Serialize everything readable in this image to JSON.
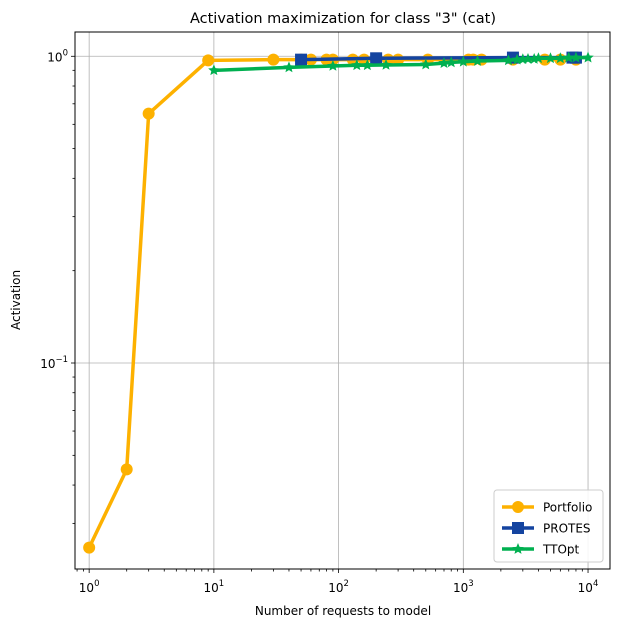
{
  "chart_data": {
    "type": "line",
    "title": "Activation maximization for class \"3\" (cat)",
    "xlabel": "Number of requests to model",
    "ylabel": "Activation",
    "xscale": "log",
    "yscale": "log",
    "xlim": [
      0.77,
      15000
    ],
    "ylim": [
      0.0213,
      1.2
    ],
    "x_ticks": [
      {
        "value": 1,
        "base": "10",
        "exp": "0"
      },
      {
        "value": 10,
        "base": "10",
        "exp": "1"
      },
      {
        "value": 100,
        "base": "10",
        "exp": "2"
      },
      {
        "value": 1000,
        "base": "10",
        "exp": "3"
      },
      {
        "value": 10000,
        "base": "10",
        "exp": "4"
      }
    ],
    "y_ticks": [
      {
        "value": 0.1,
        "base": "10",
        "exp": "−1"
      },
      {
        "value": 1,
        "base": "10",
        "exp": "0"
      }
    ],
    "grid": true,
    "legend_position": "bottom-right",
    "series": [
      {
        "name": "Portfolio",
        "color": "#fdb100",
        "marker": "circle",
        "x": [
          1,
          2,
          3,
          9,
          30,
          50,
          60,
          80,
          90,
          130,
          160,
          200,
          250,
          300,
          520,
          1100,
          1200,
          1400,
          2500,
          4500,
          6000,
          8000
        ],
        "y": [
          0.025,
          0.045,
          0.65,
          0.97,
          0.975,
          0.975,
          0.975,
          0.975,
          0.975,
          0.975,
          0.975,
          0.975,
          0.975,
          0.975,
          0.975,
          0.975,
          0.975,
          0.975,
          0.975,
          0.975,
          0.975,
          0.975
        ]
      },
      {
        "name": "PROTES",
        "color": "#1444a0",
        "marker": "square",
        "x": [
          50,
          200,
          2500,
          7500,
          8000
        ],
        "y": [
          0.975,
          0.985,
          0.99,
          0.99,
          0.99
        ]
      },
      {
        "name": "TTOpt",
        "color": "#00b050",
        "marker": "star",
        "x": [
          10,
          40,
          90,
          140,
          170,
          240,
          500,
          700,
          800,
          1000,
          1300,
          2300,
          2700,
          3000,
          3300,
          3700,
          4000,
          5000,
          6000,
          7000,
          8000,
          10000
        ],
        "y": [
          0.9,
          0.92,
          0.93,
          0.935,
          0.935,
          0.937,
          0.94,
          0.95,
          0.955,
          0.96,
          0.965,
          0.97,
          0.975,
          0.978,
          0.98,
          0.98,
          0.985,
          0.985,
          0.985,
          0.99,
          0.99,
          0.99
        ]
      }
    ]
  }
}
